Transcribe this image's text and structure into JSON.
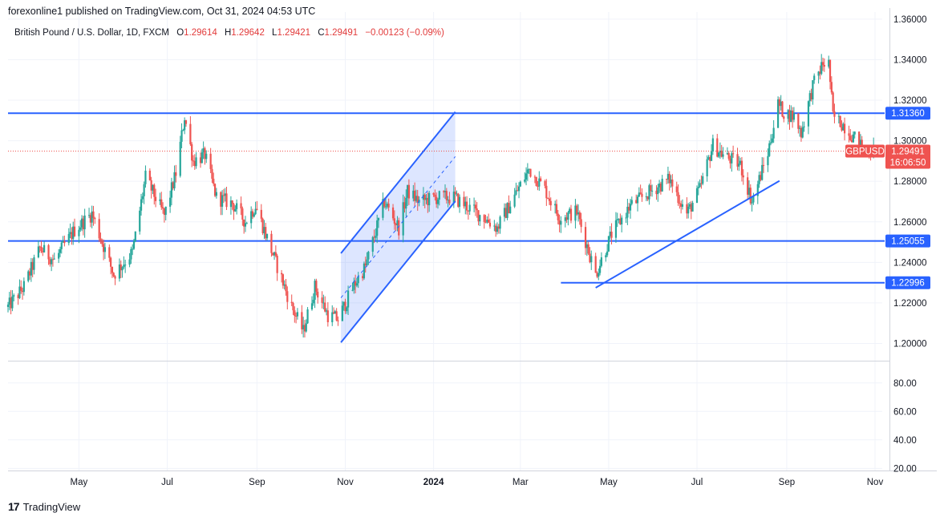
{
  "header": {
    "attribution": "forexonline1 published on TradingView.com, Oct 31, 2024 04:53 UTC"
  },
  "legend": {
    "symbol_desc": "British Pound / U.S. Dollar, 1D, FXCM",
    "open_label": "O",
    "open": "1.29614",
    "high_label": "H",
    "high": "1.29642",
    "low_label": "L",
    "low": "1.29421",
    "close_label": "C",
    "close": "1.29491",
    "change": "−0.00123 (−0.09%)"
  },
  "footer": {
    "brand": "TradingView",
    "logo_text": "17"
  },
  "colors": {
    "up": "#26a69a",
    "down": "#ef5350",
    "line": "#2962ff",
    "price_label_bg": "#ef5350",
    "level_label_bg": "#2962ff",
    "grid": "#f0f3fa"
  },
  "chart_data": {
    "type": "candlestick",
    "symbol": "GBPUSD",
    "timeframe": "1D",
    "x_tick_labels": [
      "May",
      "Jul",
      "Sep",
      "Nov",
      "2024",
      "Mar",
      "May",
      "Jul",
      "Sep",
      "Nov"
    ],
    "x_tick_dates": [
      "2023-05-01",
      "2023-07-01",
      "2023-09-01",
      "2023-11-01",
      "2024-01-01",
      "2024-03-01",
      "2024-05-01",
      "2024-07-01",
      "2024-09-01",
      "2024-11-01"
    ],
    "price_ticks": [
      "1.36000",
      "1.34000",
      "1.32000",
      "1.30000",
      "1.28000",
      "1.26000",
      "1.24000",
      "1.22000",
      "1.20000"
    ],
    "price_range": [
      1.1915,
      1.3635
    ],
    "oscillator_ticks": [
      "80.00",
      "60.00",
      "40.00",
      "20.00"
    ],
    "oscillator_range": [
      18.5,
      94.5
    ],
    "current_price": {
      "value": 1.29491,
      "label": "1.29491",
      "countdown": "16:06:50",
      "symbol_tag": "GBPUSD"
    },
    "horizontal_levels": [
      {
        "value": 1.3136,
        "label": "1.31360",
        "from": "2023-03-13",
        "to": "2024-10-31"
      },
      {
        "value": 1.25055,
        "label": "1.25055",
        "from": "2023-03-13",
        "to": "2024-10-31"
      },
      {
        "value": 1.22996,
        "label": "1.22996",
        "from": "2024-03-29",
        "to": "2024-10-31"
      }
    ],
    "trendlines": [
      {
        "from": {
          "date": "2024-04-22",
          "price": 1.2275
        },
        "to": {
          "date": "2024-08-27",
          "price": 1.2802
        }
      },
      {
        "from": {
          "date": "2023-10-29",
          "price": 1.2445
        },
        "to": {
          "date": "2024-01-16",
          "price": 1.3142
        }
      },
      {
        "from": {
          "date": "2023-10-29",
          "price": 1.2005
        },
        "to": {
          "date": "2024-01-16",
          "price": 1.2702
        }
      }
    ],
    "channel_midline": {
      "from": {
        "date": "2023-10-29",
        "price": 1.2225
      },
      "to": {
        "date": "2024-01-16",
        "price": 1.2922
      }
    },
    "channel_fill": [
      {
        "date": "2023-10-29",
        "price": 1.2445
      },
      {
        "date": "2024-01-16",
        "price": 1.3142
      },
      {
        "date": "2024-01-16",
        "price": 1.2702
      },
      {
        "date": "2023-10-29",
        "price": 1.2005
      }
    ],
    "close_waypoints": [
      [
        "2023-03-13",
        1.218
      ],
      [
        "2023-03-24",
        1.228
      ],
      [
        "2023-04-04",
        1.247
      ],
      [
        "2023-04-14",
        1.241
      ],
      [
        "2023-04-28",
        1.256
      ],
      [
        "2023-05-10",
        1.264
      ],
      [
        "2023-05-25",
        1.234
      ],
      [
        "2023-06-07",
        1.245
      ],
      [
        "2023-06-16",
        1.282
      ],
      [
        "2023-06-29",
        1.263
      ],
      [
        "2023-07-07",
        1.284
      ],
      [
        "2023-07-13",
        1.312
      ],
      [
        "2023-07-19",
        1.29
      ],
      [
        "2023-07-27",
        1.293
      ],
      [
        "2023-08-04",
        1.272
      ],
      [
        "2023-08-15",
        1.269
      ],
      [
        "2023-08-24",
        1.26
      ],
      [
        "2023-08-31",
        1.268
      ],
      [
        "2023-09-10",
        1.248
      ],
      [
        "2023-09-25",
        1.218
      ],
      [
        "2023-10-03",
        1.206
      ],
      [
        "2023-10-11",
        1.228
      ],
      [
        "2023-10-20",
        1.214
      ],
      [
        "2023-10-27",
        1.212
      ],
      [
        "2023-11-08",
        1.23
      ],
      [
        "2023-11-15",
        1.238
      ],
      [
        "2023-11-28",
        1.27
      ],
      [
        "2023-12-08",
        1.257
      ],
      [
        "2023-12-14",
        1.275
      ],
      [
        "2023-12-22",
        1.27
      ],
      [
        "2024-01-04",
        1.272
      ],
      [
        "2024-01-15",
        1.272
      ],
      [
        "2024-02-05",
        1.262
      ],
      [
        "2024-02-14",
        1.257
      ],
      [
        "2024-03-07",
        1.286
      ],
      [
        "2024-03-18",
        1.276
      ],
      [
        "2024-03-28",
        1.262
      ],
      [
        "2024-04-09",
        1.265
      ],
      [
        "2024-04-22",
        1.234
      ],
      [
        "2024-05-03",
        1.254
      ],
      [
        "2024-05-16",
        1.268
      ],
      [
        "2024-06-03",
        1.277
      ],
      [
        "2024-06-12",
        1.281
      ],
      [
        "2024-06-24",
        1.264
      ],
      [
        "2024-07-03",
        1.276
      ],
      [
        "2024-07-12",
        1.298
      ],
      [
        "2024-07-19",
        1.293
      ],
      [
        "2024-07-31",
        1.288
      ],
      [
        "2024-08-08",
        1.27
      ],
      [
        "2024-08-19",
        1.294
      ],
      [
        "2024-08-26",
        1.318
      ],
      [
        "2024-08-30",
        1.314
      ],
      [
        "2024-09-06",
        1.312
      ],
      [
        "2024-09-11",
        1.304
      ],
      [
        "2024-09-19",
        1.327
      ],
      [
        "2024-09-26",
        1.338
      ],
      [
        "2024-09-30",
        1.338
      ],
      [
        "2024-10-03",
        1.312
      ],
      [
        "2024-10-10",
        1.308
      ],
      [
        "2024-10-17",
        1.302
      ],
      [
        "2024-10-24",
        1.296
      ],
      [
        "2024-10-31",
        1.2949
      ]
    ]
  }
}
